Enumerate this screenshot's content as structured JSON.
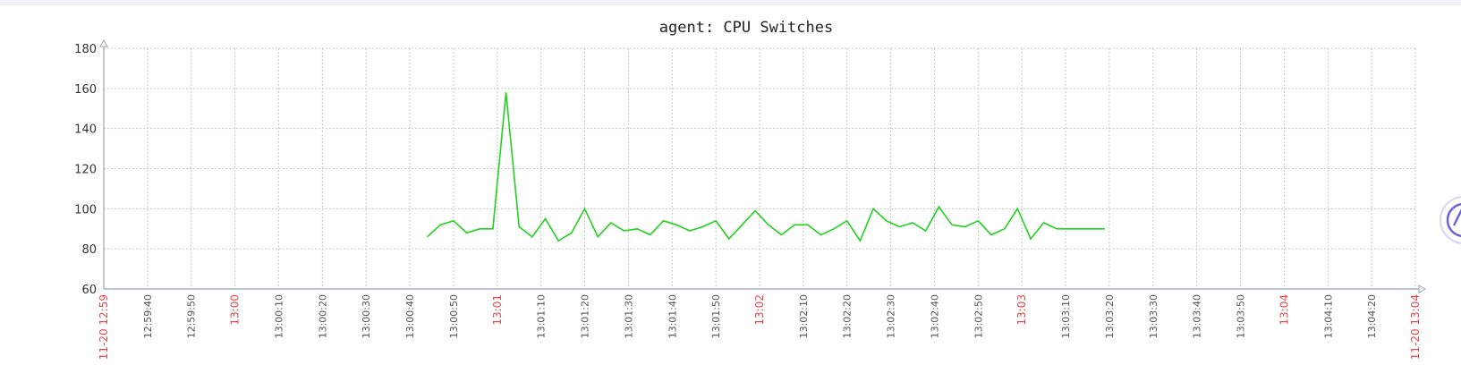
{
  "chart_data": {
    "type": "line",
    "title": "agent: CPU Switches",
    "ylim": [
      60,
      180
    ],
    "y_ticks": [
      60,
      80,
      100,
      120,
      140,
      160,
      180
    ],
    "grid": true,
    "x_ticks": [
      {
        "label": "11-20 12:59",
        "major": true
      },
      {
        "label": "12:59:40",
        "major": false
      },
      {
        "label": "12:59:50",
        "major": false
      },
      {
        "label": "13:00",
        "major": true
      },
      {
        "label": "13:00:10",
        "major": false
      },
      {
        "label": "13:00:20",
        "major": false
      },
      {
        "label": "13:00:30",
        "major": false
      },
      {
        "label": "13:00:40",
        "major": false
      },
      {
        "label": "13:00:50",
        "major": false
      },
      {
        "label": "13:01",
        "major": true
      },
      {
        "label": "13:01:10",
        "major": false
      },
      {
        "label": "13:01:20",
        "major": false
      },
      {
        "label": "13:01:30",
        "major": false
      },
      {
        "label": "13:01:40",
        "major": false
      },
      {
        "label": "13:01:50",
        "major": false
      },
      {
        "label": "13:02",
        "major": true
      },
      {
        "label": "13:02:10",
        "major": false
      },
      {
        "label": "13:02:20",
        "major": false
      },
      {
        "label": "13:02:30",
        "major": false
      },
      {
        "label": "13:02:40",
        "major": false
      },
      {
        "label": "13:02:50",
        "major": false
      },
      {
        "label": "13:03",
        "major": true
      },
      {
        "label": "13:03:10",
        "major": false
      },
      {
        "label": "13:03:20",
        "major": false
      },
      {
        "label": "13:03:30",
        "major": false
      },
      {
        "label": "13:03:40",
        "major": false
      },
      {
        "label": "13:03:50",
        "major": false
      },
      {
        "label": "13:04",
        "major": true
      },
      {
        "label": "13:04:10",
        "major": false
      },
      {
        "label": "13:04:20",
        "major": false
      },
      {
        "label": "11-20 13:04",
        "major": true
      }
    ],
    "series": [
      {
        "color": "#22d11f",
        "points": [
          [
            "13:00:44",
            86
          ],
          [
            "13:00:47",
            92
          ],
          [
            "13:00:50",
            94
          ],
          [
            "13:00:53",
            88
          ],
          [
            "13:00:56",
            90
          ],
          [
            "13:00:59",
            90
          ],
          [
            "13:01:02",
            158
          ],
          [
            "13:01:05",
            91
          ],
          [
            "13:01:08",
            86
          ],
          [
            "13:01:11",
            95
          ],
          [
            "13:01:14",
            84
          ],
          [
            "13:01:17",
            88
          ],
          [
            "13:01:20",
            100
          ],
          [
            "13:01:23",
            86
          ],
          [
            "13:01:26",
            93
          ],
          [
            "13:01:29",
            89
          ],
          [
            "13:01:32",
            90
          ],
          [
            "13:01:35",
            87
          ],
          [
            "13:01:38",
            94
          ],
          [
            "13:01:41",
            92
          ],
          [
            "13:01:44",
            89
          ],
          [
            "13:01:47",
            91
          ],
          [
            "13:01:50",
            94
          ],
          [
            "13:01:53",
            85
          ],
          [
            "13:01:56",
            92
          ],
          [
            "13:01:59",
            99
          ],
          [
            "13:02:02",
            92
          ],
          [
            "13:02:05",
            87
          ],
          [
            "13:02:08",
            92
          ],
          [
            "13:02:11",
            92
          ],
          [
            "13:02:14",
            87
          ],
          [
            "13:02:17",
            90
          ],
          [
            "13:02:20",
            94
          ],
          [
            "13:02:23",
            84
          ],
          [
            "13:02:26",
            100
          ],
          [
            "13:02:29",
            94
          ],
          [
            "13:02:32",
            91
          ],
          [
            "13:02:35",
            93
          ],
          [
            "13:02:38",
            89
          ],
          [
            "13:02:41",
            101
          ],
          [
            "13:02:44",
            92
          ],
          [
            "13:02:47",
            91
          ],
          [
            "13:02:50",
            94
          ],
          [
            "13:02:53",
            87
          ],
          [
            "13:02:56",
            90
          ],
          [
            "13:02:59",
            100
          ],
          [
            "13:03:02",
            85
          ],
          [
            "13:03:05",
            93
          ],
          [
            "13:03:08",
            90
          ],
          [
            "13:03:11",
            90
          ],
          [
            "13:03:14",
            90
          ],
          [
            "13:03:17",
            90
          ],
          [
            "13:03:19",
            90
          ]
        ]
      }
    ]
  },
  "scroll_button": {
    "icon": "scroll-to-top-icon",
    "color": "#6c63d9"
  }
}
